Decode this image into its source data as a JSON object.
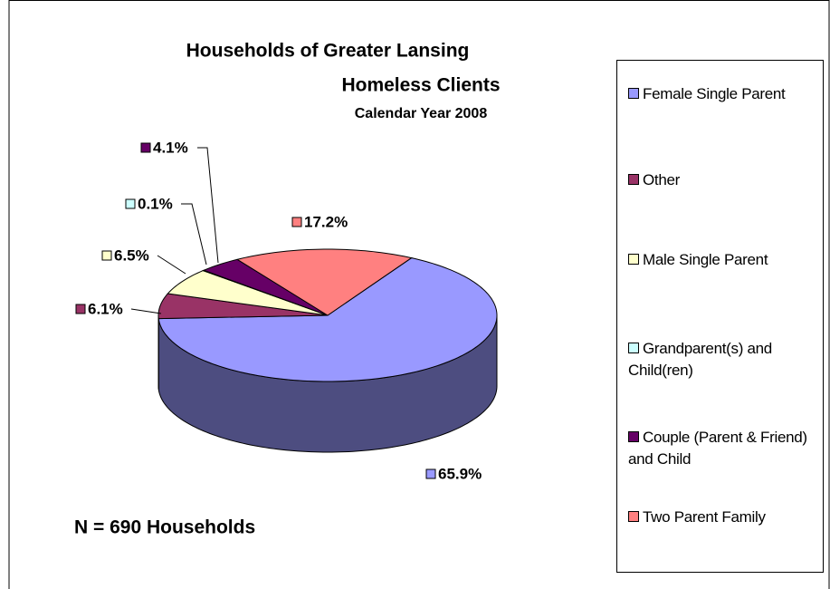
{
  "chart_data": {
    "type": "pie3d",
    "title": [
      "Households of Greater Lansing",
      "Homeless Clients"
    ],
    "subtitle": "Calendar Year 2008",
    "annotation": "N = 690  Households",
    "categories": [
      "Female Single Parent",
      "Other",
      "Male Single Parent",
      "Grandparent(s) and Child(ren)",
      "Couple (Parent & Friend) and Child",
      "Two Parent Family"
    ],
    "values": [
      65.9,
      6.1,
      6.5,
      0.1,
      4.1,
      17.2
    ],
    "value_labels": [
      "65.9%",
      "6.1%",
      "6.5%",
      "0.1%",
      "4.1%",
      "17.2%"
    ],
    "colors": [
      "#9999ff",
      "#993366",
      "#ffffcc",
      "#ccffff",
      "#660066",
      "#ff8080"
    ],
    "legend": "right"
  }
}
